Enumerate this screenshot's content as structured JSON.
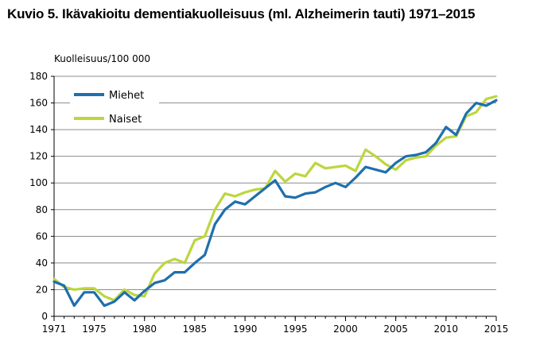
{
  "title": "Kuvio 5. Ikävakioitu dementiakuolleisuus (ml. Alzheimerin tauti) 1971–2015",
  "chart_data": {
    "type": "line",
    "title": "Kuvio 5. Ikävakioitu dementiakuolleisuus (ml. Alzheimerin tauti) 1971–2015",
    "ylabel": "Kuolleisuus/100 000",
    "xlabel": "",
    "xlim": [
      1971,
      2015
    ],
    "ylim": [
      0,
      180
    ],
    "x_ticks": [
      1971,
      1975,
      1980,
      1985,
      1990,
      1995,
      2000,
      2005,
      2010,
      2015
    ],
    "y_ticks": [
      0,
      20,
      40,
      60,
      80,
      100,
      120,
      140,
      160,
      180
    ],
    "grid": "horizontal",
    "legend_position": "top-left",
    "x": [
      1971,
      1972,
      1973,
      1974,
      1975,
      1976,
      1977,
      1978,
      1979,
      1980,
      1981,
      1982,
      1983,
      1984,
      1985,
      1986,
      1987,
      1988,
      1989,
      1990,
      1991,
      1992,
      1993,
      1994,
      1995,
      1996,
      1997,
      1998,
      1999,
      2000,
      2001,
      2002,
      2003,
      2004,
      2005,
      2006,
      2007,
      2008,
      2009,
      2010,
      2011,
      2012,
      2013,
      2014,
      2015
    ],
    "series": [
      {
        "name": "Miehet",
        "color": "#1f6fad",
        "values": [
          26,
          23,
          8,
          18,
          18,
          8,
          11,
          18,
          12,
          19,
          25,
          27,
          33,
          33,
          40,
          46,
          69,
          80,
          86,
          84,
          90,
          96,
          102,
          90,
          89,
          92,
          93,
          97,
          100,
          97,
          104,
          112,
          110,
          108,
          115,
          120,
          121,
          123,
          130,
          142,
          136,
          152,
          160,
          158,
          162
        ]
      },
      {
        "name": "Naiset",
        "color": "#bcd63e",
        "values": [
          28,
          22,
          20,
          21,
          21,
          15,
          12,
          20,
          16,
          15,
          32,
          40,
          43,
          40,
          57,
          60,
          80,
          92,
          90,
          93,
          95,
          96,
          109,
          101,
          107,
          105,
          115,
          111,
          112,
          113,
          109,
          125,
          120,
          114,
          110,
          117,
          119,
          120,
          128,
          134,
          135,
          150,
          153,
          163,
          165
        ]
      }
    ]
  }
}
